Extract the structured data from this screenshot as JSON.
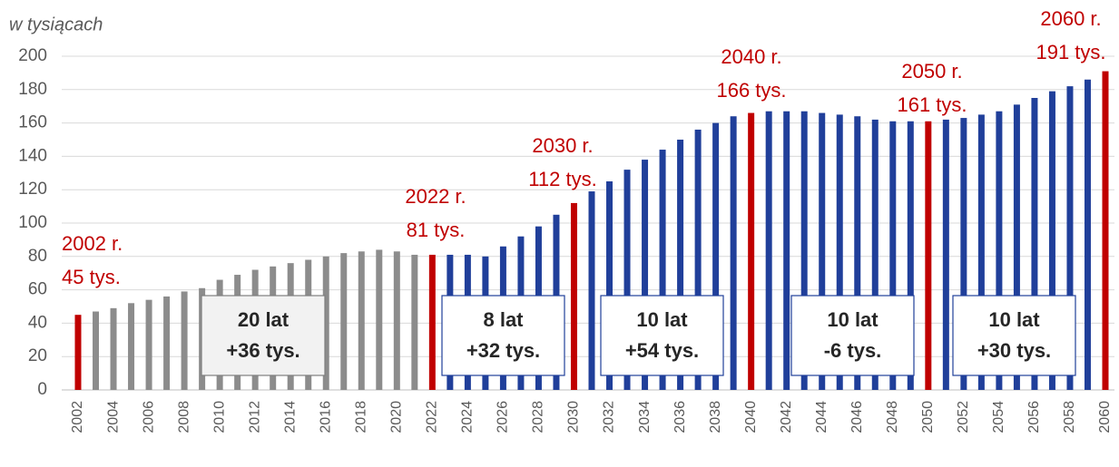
{
  "chart_data": {
    "type": "bar",
    "y_axis_label": "w tysiącach",
    "categories": [
      "2002",
      null,
      "2004",
      null,
      "2006",
      null,
      "2008",
      null,
      "2010",
      null,
      "2012",
      null,
      "2014",
      null,
      "2016",
      null,
      "2018",
      null,
      "2020",
      null,
      "2022",
      null,
      "2024",
      null,
      "2026",
      null,
      "2028",
      null,
      "2030",
      null,
      "2032",
      null,
      "2034",
      null,
      "2036",
      null,
      "2038",
      null,
      "2040",
      null,
      "2042",
      null,
      "2044",
      null,
      "2046",
      null,
      "2048",
      null,
      "2050",
      null,
      "2052",
      null,
      "2054",
      null,
      "2056",
      null,
      "2058",
      null,
      "2060"
    ],
    "values": [
      45,
      47,
      49,
      52,
      54,
      56,
      59,
      61,
      66,
      69,
      72,
      74,
      76,
      78,
      80,
      82,
      83,
      84,
      83,
      81,
      81,
      81,
      81,
      80,
      86,
      92,
      98,
      105,
      112,
      119,
      125,
      132,
      138,
      144,
      150,
      156,
      160,
      164,
      166,
      167,
      167,
      167,
      166,
      165,
      164,
      162,
      161,
      161,
      161,
      162,
      163,
      165,
      167,
      171,
      175,
      179,
      182,
      186,
      191
    ],
    "colors": [
      "#c00000",
      "#8c8c8c",
      "#8c8c8c",
      "#8c8c8c",
      "#8c8c8c",
      "#8c8c8c",
      "#8c8c8c",
      "#8c8c8c",
      "#8c8c8c",
      "#8c8c8c",
      "#8c8c8c",
      "#8c8c8c",
      "#8c8c8c",
      "#8c8c8c",
      "#8c8c8c",
      "#8c8c8c",
      "#8c8c8c",
      "#8c8c8c",
      "#8c8c8c",
      "#8c8c8c",
      "#c00000",
      "#203f9a",
      "#203f9a",
      "#203f9a",
      "#203f9a",
      "#203f9a",
      "#203f9a",
      "#203f9a",
      "#c00000",
      "#203f9a",
      "#203f9a",
      "#203f9a",
      "#203f9a",
      "#203f9a",
      "#203f9a",
      "#203f9a",
      "#203f9a",
      "#203f9a",
      "#c00000",
      "#203f9a",
      "#203f9a",
      "#203f9a",
      "#203f9a",
      "#203f9a",
      "#203f9a",
      "#203f9a",
      "#203f9a",
      "#203f9a",
      "#c00000",
      "#203f9a",
      "#203f9a",
      "#203f9a",
      "#203f9a",
      "#203f9a",
      "#203f9a",
      "#203f9a",
      "#203f9a",
      "#203f9a",
      "#c00000"
    ],
    "ylim": [
      0,
      200
    ],
    "yticks": [
      0,
      20,
      40,
      60,
      80,
      100,
      120,
      140,
      160,
      180,
      200
    ],
    "grid": true,
    "annotations": [
      {
        "lines": [
          "2002 r.",
          "45 tys."
        ]
      },
      {
        "lines": [
          "2022 r.",
          "81 tys."
        ]
      },
      {
        "lines": [
          "2030 r.",
          "112 tys."
        ]
      },
      {
        "lines": [
          "2040 r.",
          "166 tys."
        ]
      },
      {
        "lines": [
          "2050 r.",
          "161 tys."
        ]
      },
      {
        "lines": [
          "2060 r.",
          "191 tys."
        ]
      }
    ],
    "boxes": [
      {
        "lines": [
          "20 lat",
          "+36 tys."
        ]
      },
      {
        "lines": [
          "8 lat",
          "+32 tys."
        ]
      },
      {
        "lines": [
          "10 lat",
          "+54 tys."
        ]
      },
      {
        "lines": [
          "10 lat",
          "-6 tys."
        ]
      },
      {
        "lines": [
          "10 lat",
          "+30 tys."
        ]
      }
    ]
  }
}
